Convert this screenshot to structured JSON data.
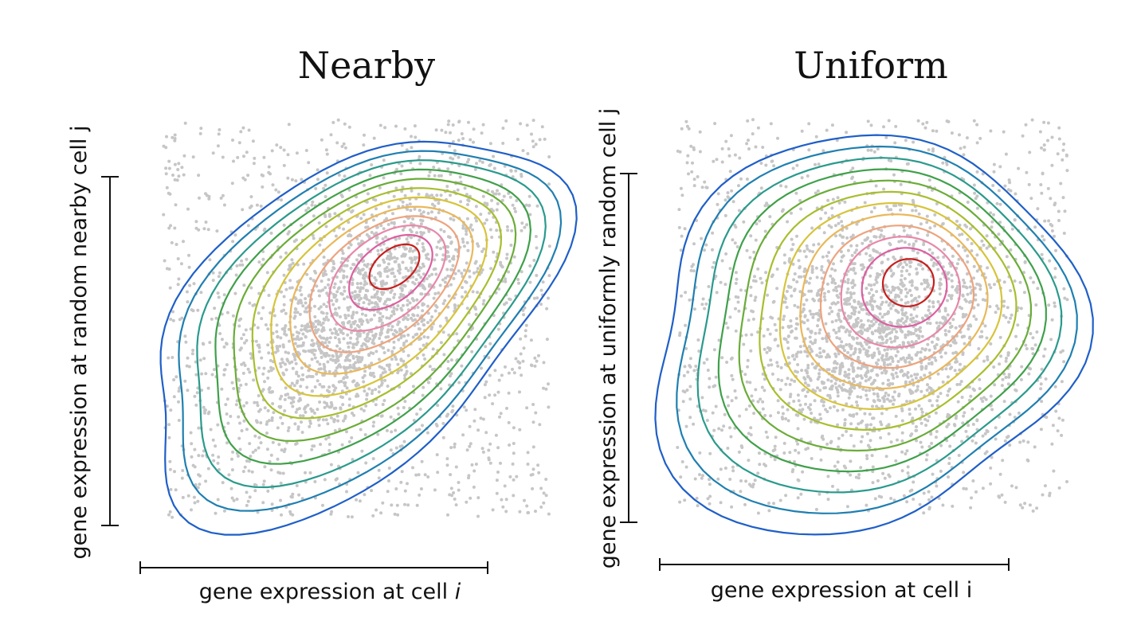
{
  "chart_data": [
    {
      "type": "scatter",
      "title": "Nearby",
      "xlabel_prefix": "gene expression at cell ",
      "xlabel_var": "i",
      "ylabel": "gene expression at random nearby cell j",
      "points": "scattered gene-expression samples with density contours",
      "density_peak": {
        "x": 0.72,
        "y": 0.72
      },
      "correlation": 0.6,
      "contour_levels": 12,
      "contour_colors": [
        "#1f5fc8",
        "#1f7fb0",
        "#2a9a8c",
        "#3fa04a",
        "#6aac38",
        "#a8be2e",
        "#d7c43a",
        "#e9b85a",
        "#eda47e",
        "#e888a8",
        "#dd5fa0",
        "#c81e1e"
      ]
    },
    {
      "type": "scatter",
      "title": "Uniform",
      "xlabel": "gene expression at cell i",
      "ylabel": "gene expression at uniformly random cell j",
      "points": "scattered gene-expression samples with density contours",
      "density_peak": {
        "x": 0.68,
        "y": 0.68
      },
      "correlation": 0.1,
      "contour_levels": 12,
      "contour_colors": [
        "#1f5fc8",
        "#1f7fb0",
        "#2a9a8c",
        "#3fa04a",
        "#6aac38",
        "#a8be2e",
        "#d7c43a",
        "#e9b85a",
        "#eda47e",
        "#e888a8",
        "#dd5fa0",
        "#c81e1e"
      ]
    }
  ]
}
